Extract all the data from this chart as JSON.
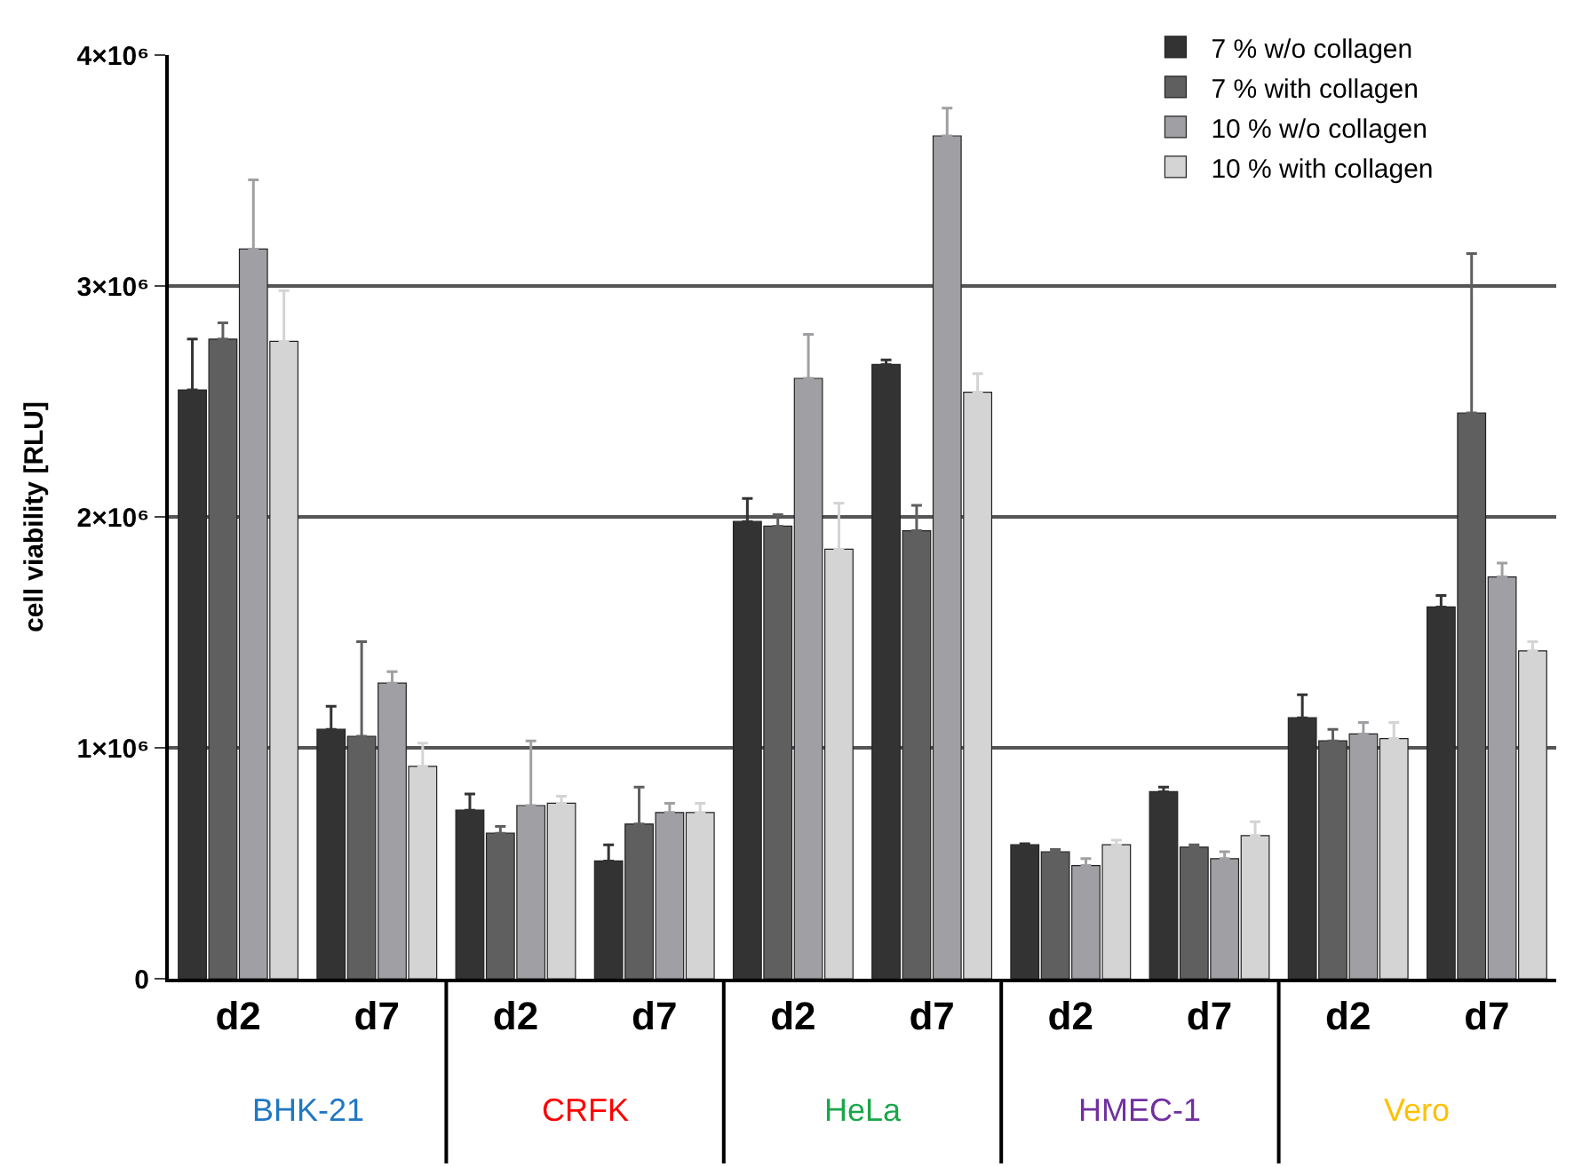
{
  "chart_data": {
    "type": "bar",
    "ylabel": "cell viability [RLU]",
    "categories": [
      "d2",
      "d7",
      "d2",
      "d7",
      "d2",
      "d7",
      "d2",
      "d7",
      "d2",
      "d7"
    ],
    "series": [
      {
        "name": "7 % w/o collagen",
        "color": "#333333",
        "values": [
          2550000,
          1080000,
          730000,
          510000,
          1980000,
          2660000,
          580000,
          810000,
          1130000,
          1610000
        ],
        "errors": [
          [
            2550000,
            2770000
          ],
          [
            1080000,
            1180000
          ],
          [
            730000,
            800000
          ],
          [
            510000,
            580000
          ],
          [
            1980000,
            2080000
          ],
          [
            2660000,
            2680000
          ],
          [
            580000,
            585000
          ],
          [
            810000,
            830000
          ],
          [
            1130000,
            1230000
          ],
          [
            1610000,
            1660000
          ]
        ]
      },
      {
        "name": "7 % with collagen",
        "color": "#5f5f5f",
        "values": [
          2770000,
          1050000,
          630000,
          670000,
          1960000,
          1940000,
          550000,
          570000,
          1030000,
          2450000
        ],
        "errors": [
          [
            2770000,
            2840000
          ],
          [
            1050000,
            1460000
          ],
          [
            630000,
            660000
          ],
          [
            670000,
            830000
          ],
          [
            1960000,
            2010000
          ],
          [
            1940000,
            2050000
          ],
          [
            550000,
            560000
          ],
          [
            570000,
            580000
          ],
          [
            1030000,
            1080000
          ],
          [
            2450000,
            3140000
          ]
        ]
      },
      {
        "name": "10 % w/o collagen",
        "color": "#a0a0a4",
        "values": [
          3160000,
          1280000,
          750000,
          720000,
          2600000,
          3650000,
          490000,
          520000,
          1060000,
          1740000
        ],
        "errors": [
          [
            3160000,
            3460000
          ],
          [
            1280000,
            1330000
          ],
          [
            750000,
            1030000
          ],
          [
            720000,
            760000
          ],
          [
            2600000,
            2790000
          ],
          [
            3650000,
            3770000
          ],
          [
            490000,
            520000
          ],
          [
            520000,
            550000
          ],
          [
            1060000,
            1110000
          ],
          [
            1740000,
            1800000
          ]
        ]
      },
      {
        "name": "10 % with collagen",
        "color": "#d4d4d4",
        "values": [
          2760000,
          920000,
          760000,
          720000,
          1860000,
          2540000,
          580000,
          620000,
          1040000,
          1420000
        ],
        "errors": [
          [
            2760000,
            2980000
          ],
          [
            920000,
            1020000
          ],
          [
            760000,
            790000
          ],
          [
            720000,
            760000
          ],
          [
            1860000,
            2060000
          ],
          [
            2540000,
            2620000
          ],
          [
            580000,
            600000
          ],
          [
            620000,
            680000
          ],
          [
            1040000,
            1110000
          ],
          [
            1420000,
            1460000
          ]
        ]
      }
    ],
    "ylim": [
      0,
      4000000
    ],
    "yticks": [
      {
        "value": 0,
        "label": "0"
      },
      {
        "value": 1000000,
        "label": "1×10⁶"
      },
      {
        "value": 2000000,
        "label": "2×10⁶"
      },
      {
        "value": 3000000,
        "label": "3×10⁶"
      },
      {
        "value": 4000000,
        "label": "4×10⁶"
      }
    ],
    "grid": "y",
    "legend": "top right",
    "annotations": [
      "BHK-21",
      "CRFK",
      "HeLa",
      "HMEC-1",
      "Vero"
    ]
  }
}
